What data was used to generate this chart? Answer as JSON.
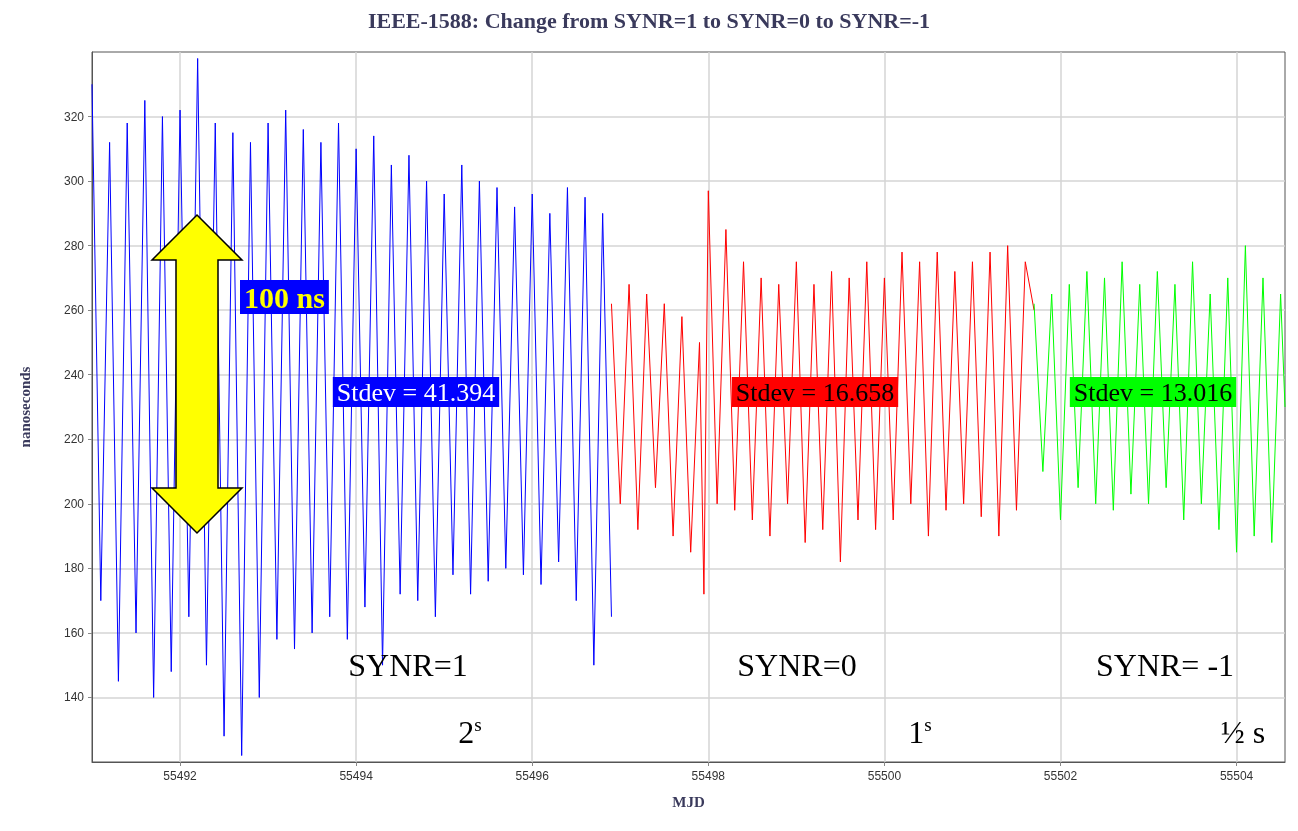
{
  "chart_data": {
    "type": "line",
    "title": "IEEE-1588: Change from SYNR=1 to SYNR=0 to SYNR=-1",
    "xlabel": "MJD",
    "ylabel": "nanoseconds",
    "xlim": [
      55491,
      55504.55
    ],
    "xticks": [
      55492,
      55494,
      55496,
      55498,
      55500,
      55502,
      55504
    ],
    "ylim": [
      120,
      340
    ],
    "yticks": [
      140,
      160,
      180,
      200,
      220,
      240,
      260,
      280,
      300,
      320
    ],
    "grid": true,
    "marker": "none",
    "line_style": "solid",
    "series": [
      {
        "color": "#0000ff",
        "x": [
          55491.0,
          55491.1,
          55491.2,
          55491.3,
          55491.4,
          55491.5,
          55491.6,
          55491.7,
          55491.8,
          55491.9,
          55492.0,
          55492.1,
          55492.2,
          55492.3,
          55492.4,
          55492.5,
          55492.6,
          55492.7,
          55492.8,
          55492.9,
          55493.0,
          55493.1,
          55493.2,
          55493.3,
          55493.4,
          55493.5,
          55493.6,
          55493.7,
          55493.8,
          55493.9,
          55494.0,
          55494.1,
          55494.2,
          55494.3,
          55494.4,
          55494.5,
          55494.6,
          55494.7,
          55494.8,
          55494.9,
          55495.0,
          55495.1,
          55495.2,
          55495.3,
          55495.4,
          55495.5,
          55495.6,
          55495.7,
          55495.8,
          55495.9,
          55496.0,
          55496.1,
          55496.2,
          55496.3,
          55496.4,
          55496.5,
          55496.6,
          55496.7,
          55496.8,
          55496.9
        ],
        "values": [
          330,
          170,
          312,
          145,
          318,
          160,
          325,
          140,
          320,
          148,
          322,
          165,
          338,
          150,
          318,
          128,
          315,
          122,
          312,
          140,
          318,
          158,
          322,
          155,
          316,
          160,
          312,
          165,
          318,
          158,
          310,
          168,
          314,
          150,
          305,
          172,
          308,
          170,
          300,
          165,
          296,
          178,
          305,
          172,
          300,
          176,
          298,
          180,
          292,
          178,
          296,
          175,
          290,
          182,
          298,
          170,
          295,
          150,
          290,
          165
        ]
      },
      {
        "color": "#ff0000",
        "x": [
          55496.9,
          55497.0,
          55497.1,
          55497.2,
          55497.3,
          55497.4,
          55497.5,
          55497.6,
          55497.7,
          55497.8,
          55497.9,
          55497.95,
          55498.0,
          55498.1,
          55498.2,
          55498.3,
          55498.4,
          55498.5,
          55498.6,
          55498.7,
          55498.8,
          55498.9,
          55499.0,
          55499.1,
          55499.2,
          55499.3,
          55499.4,
          55499.5,
          55499.6,
          55499.7,
          55499.8,
          55499.9,
          55500.0,
          55500.1,
          55500.2,
          55500.3,
          55500.4,
          55500.5,
          55500.6,
          55500.7,
          55500.8,
          55500.9,
          55501.0,
          55501.1,
          55501.2,
          55501.3,
          55501.4,
          55501.5,
          55501.6,
          55501.7
        ],
        "values": [
          262,
          200,
          268,
          192,
          265,
          205,
          262,
          190,
          258,
          185,
          250,
          172,
          297,
          200,
          285,
          198,
          275,
          195,
          270,
          190,
          268,
          200,
          275,
          188,
          268,
          192,
          272,
          182,
          270,
          195,
          275,
          192,
          270,
          195,
          278,
          200,
          275,
          190,
          278,
          198,
          272,
          200,
          275,
          196,
          278,
          190,
          280,
          198,
          275,
          260
        ]
      },
      {
        "color": "#00ff00",
        "x": [
          55501.7,
          55501.8,
          55501.9,
          55502.0,
          55502.1,
          55502.2,
          55502.3,
          55502.4,
          55502.5,
          55502.6,
          55502.7,
          55502.8,
          55502.9,
          55503.0,
          55503.1,
          55503.2,
          55503.3,
          55503.4,
          55503.5,
          55503.6,
          55503.7,
          55503.8,
          55503.9,
          55504.0,
          55504.1,
          55504.2,
          55504.3,
          55504.4,
          55504.5,
          55504.55
        ],
        "values": [
          262,
          210,
          265,
          195,
          268,
          205,
          272,
          200,
          270,
          198,
          275,
          203,
          268,
          200,
          272,
          205,
          268,
          195,
          275,
          200,
          265,
          192,
          270,
          185,
          280,
          190,
          270,
          188,
          265,
          230
        ]
      }
    ],
    "annotations": [
      "100 ns",
      "Stdev = 41.394",
      "Stdev = 16.658",
      "Stdev = 13.016",
      "SYNR=1",
      "SYNR=0",
      "SYNR= -1",
      "2$^{s}$",
      "1$^{s}$",
      "½ s"
    ]
  }
}
